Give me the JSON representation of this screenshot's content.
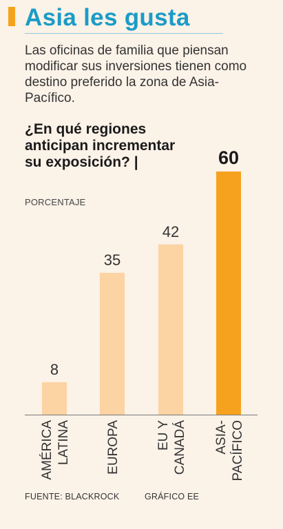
{
  "title": "Asia les gusta",
  "subtitle": "Las oficinas de familia que piensan modificar sus inversiones tienen como destino preferido la zona de Asia-Pacífico.",
  "question": "¿En qué regiones anticipan incrementar su exposición? |",
  "source": "FUENTE: BLACKROCK",
  "credit": "GRÁFICO EE",
  "colors": {
    "accent": "#f6a21e",
    "title": "#1b9cc6",
    "bar": "#fcd3a3",
    "bar_highlight": "#f6a21e",
    "background": "#fbf2e8"
  },
  "chart_data": {
    "type": "bar",
    "ylabel": "PORCENTAJE",
    "categories": [
      [
        "AMÉRICA",
        "LATINA"
      ],
      [
        "EUROPA"
      ],
      [
        "EU Y",
        "CANADÁ"
      ],
      [
        "ASIA-",
        "PACÍFICO"
      ]
    ],
    "values": [
      8,
      35,
      42,
      60
    ],
    "highlight_index": 3,
    "ylim": [
      0,
      60
    ],
    "grid": false,
    "legend": "none"
  }
}
